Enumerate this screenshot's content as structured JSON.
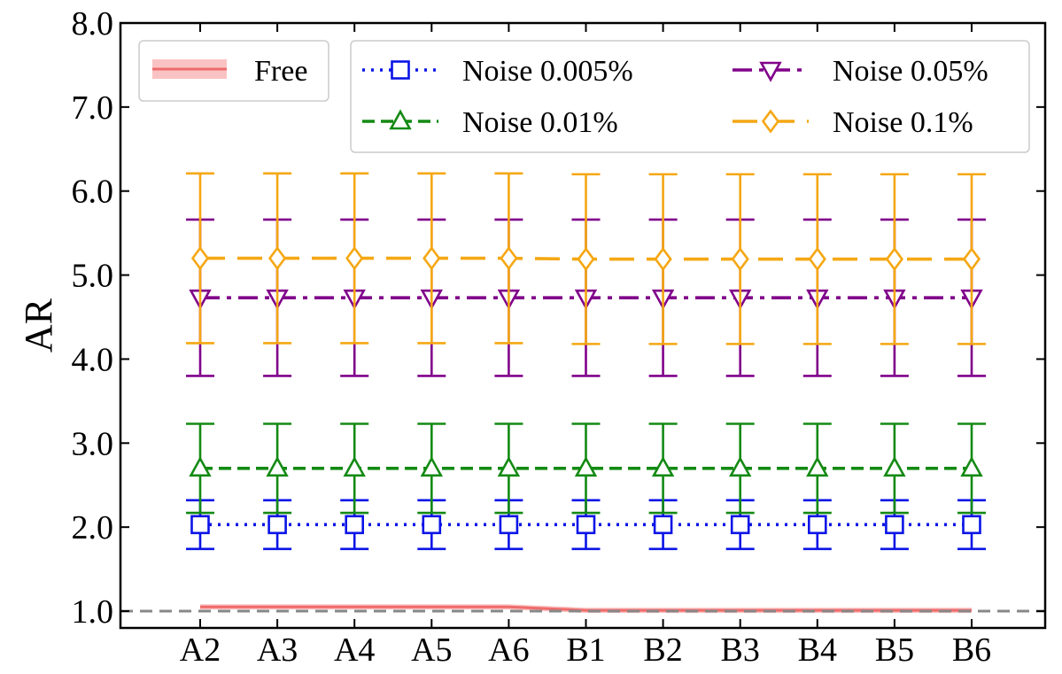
{
  "chart_data": {
    "type": "line",
    "ylabel": "AR",
    "ylim": [
      0.8,
      8.0
    ],
    "yticks": [
      1.0,
      2.0,
      3.0,
      4.0,
      5.0,
      6.0,
      7.0,
      8.0
    ],
    "ytick_labels": [
      "1.0",
      "2.0",
      "3.0",
      "4.0",
      "5.0",
      "6.0",
      "7.0",
      "8.0"
    ],
    "categories": [
      "A2",
      "A3",
      "A4",
      "A5",
      "A6",
      "B1",
      "B2",
      "B3",
      "B4",
      "B5",
      "B6"
    ],
    "reference_line": {
      "y": 1.0,
      "color": "#888888",
      "style": "dashed"
    },
    "free": {
      "name": "Free",
      "color": "#ef6b6b",
      "band_color": "#f9b4b4",
      "values": [
        1.05,
        1.05,
        1.05,
        1.05,
        1.05,
        1.01,
        1.01,
        1.01,
        1.01,
        1.01,
        1.01
      ]
    },
    "series": [
      {
        "name": "Noise 0.005%",
        "color": "#0a14e6",
        "marker": "square",
        "dash": "dotted",
        "values": [
          2.03,
          2.03,
          2.03,
          2.03,
          2.03,
          2.03,
          2.03,
          2.03,
          2.03,
          2.03,
          2.03
        ],
        "error": [
          0.29,
          0.29,
          0.29,
          0.29,
          0.29,
          0.29,
          0.29,
          0.29,
          0.29,
          0.29,
          0.29
        ]
      },
      {
        "name": "Noise 0.01%",
        "color": "#138a13",
        "marker": "triangle-up",
        "dash": "dashed",
        "values": [
          2.7,
          2.7,
          2.7,
          2.7,
          2.7,
          2.7,
          2.7,
          2.7,
          2.7,
          2.7,
          2.7
        ],
        "error": [
          0.53,
          0.53,
          0.53,
          0.53,
          0.53,
          0.53,
          0.53,
          0.53,
          0.53,
          0.53,
          0.53
        ]
      },
      {
        "name": "Noise 0.05%",
        "color": "#80008a",
        "marker": "triangle-down",
        "dash": "dashdot",
        "values": [
          4.73,
          4.73,
          4.73,
          4.73,
          4.73,
          4.73,
          4.73,
          4.73,
          4.73,
          4.73,
          4.73
        ],
        "error": [
          0.93,
          0.93,
          0.93,
          0.93,
          0.93,
          0.93,
          0.93,
          0.93,
          0.93,
          0.93,
          0.93
        ]
      },
      {
        "name": "Noise 0.1%",
        "color": "#f5a712",
        "marker": "diamond",
        "dash": "longdash",
        "values": [
          5.2,
          5.2,
          5.2,
          5.2,
          5.2,
          5.19,
          5.19,
          5.19,
          5.19,
          5.19,
          5.19
        ],
        "error": [
          1.01,
          1.01,
          1.01,
          1.01,
          1.01,
          1.01,
          1.01,
          1.01,
          1.01,
          1.01,
          1.01
        ]
      }
    ],
    "legend_placement": "top",
    "grid": false
  }
}
